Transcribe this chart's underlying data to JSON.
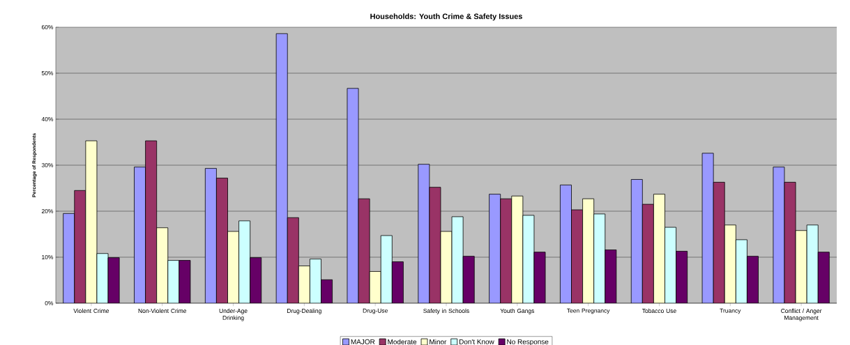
{
  "chart_data": {
    "type": "bar",
    "title": "Households:  Youth Crime & Safety Issues",
    "ylabel": "Percentage of Respondents",
    "categories": [
      "Violent Crime",
      "Non-Violent Crime",
      "Under-Age Drinking",
      "Drug-Dealing",
      "Drug-Use",
      "Safety in Schools",
      "Youth Gangs",
      "Teen Pregnancy",
      "Tobacco Use",
      "Truancy",
      "Conflict / Anger Management"
    ],
    "series": [
      {
        "name": "MAJOR",
        "color": "#9999ff",
        "values": [
          19.5,
          29.6,
          29.3,
          58.6,
          46.7,
          30.2,
          23.7,
          25.7,
          26.9,
          32.6,
          29.6
        ]
      },
      {
        "name": "Moderate",
        "color": "#993366",
        "values": [
          24.5,
          35.3,
          27.2,
          18.6,
          22.7,
          25.2,
          22.7,
          20.3,
          21.5,
          26.3,
          26.3
        ]
      },
      {
        "name": "Minor",
        "color": "#ffffcc",
        "values": [
          35.3,
          16.4,
          15.6,
          8.1,
          6.9,
          15.6,
          23.3,
          22.7,
          23.7,
          17.0,
          15.8
        ]
      },
      {
        "name": "Don't Know",
        "color": "#ccffff",
        "values": [
          10.8,
          9.3,
          17.9,
          9.6,
          14.7,
          18.8,
          19.1,
          19.4,
          16.5,
          13.8,
          17.0
        ]
      },
      {
        "name": "No Response",
        "color": "#660066",
        "values": [
          9.9,
          9.3,
          9.9,
          5.1,
          9.0,
          10.2,
          11.1,
          11.6,
          11.3,
          10.2,
          11.1
        ]
      }
    ],
    "ylim": [
      0,
      60
    ],
    "yticks": [
      {
        "value": 0,
        "label": "0%"
      },
      {
        "value": 10,
        "label": "10%"
      },
      {
        "value": 20,
        "label": "20%"
      },
      {
        "value": 30,
        "label": "30%"
      },
      {
        "value": 40,
        "label": "40%"
      },
      {
        "value": 50,
        "label": "50%"
      },
      {
        "value": 60,
        "label": "60%"
      }
    ],
    "grid": "y",
    "legend": "bottom"
  }
}
